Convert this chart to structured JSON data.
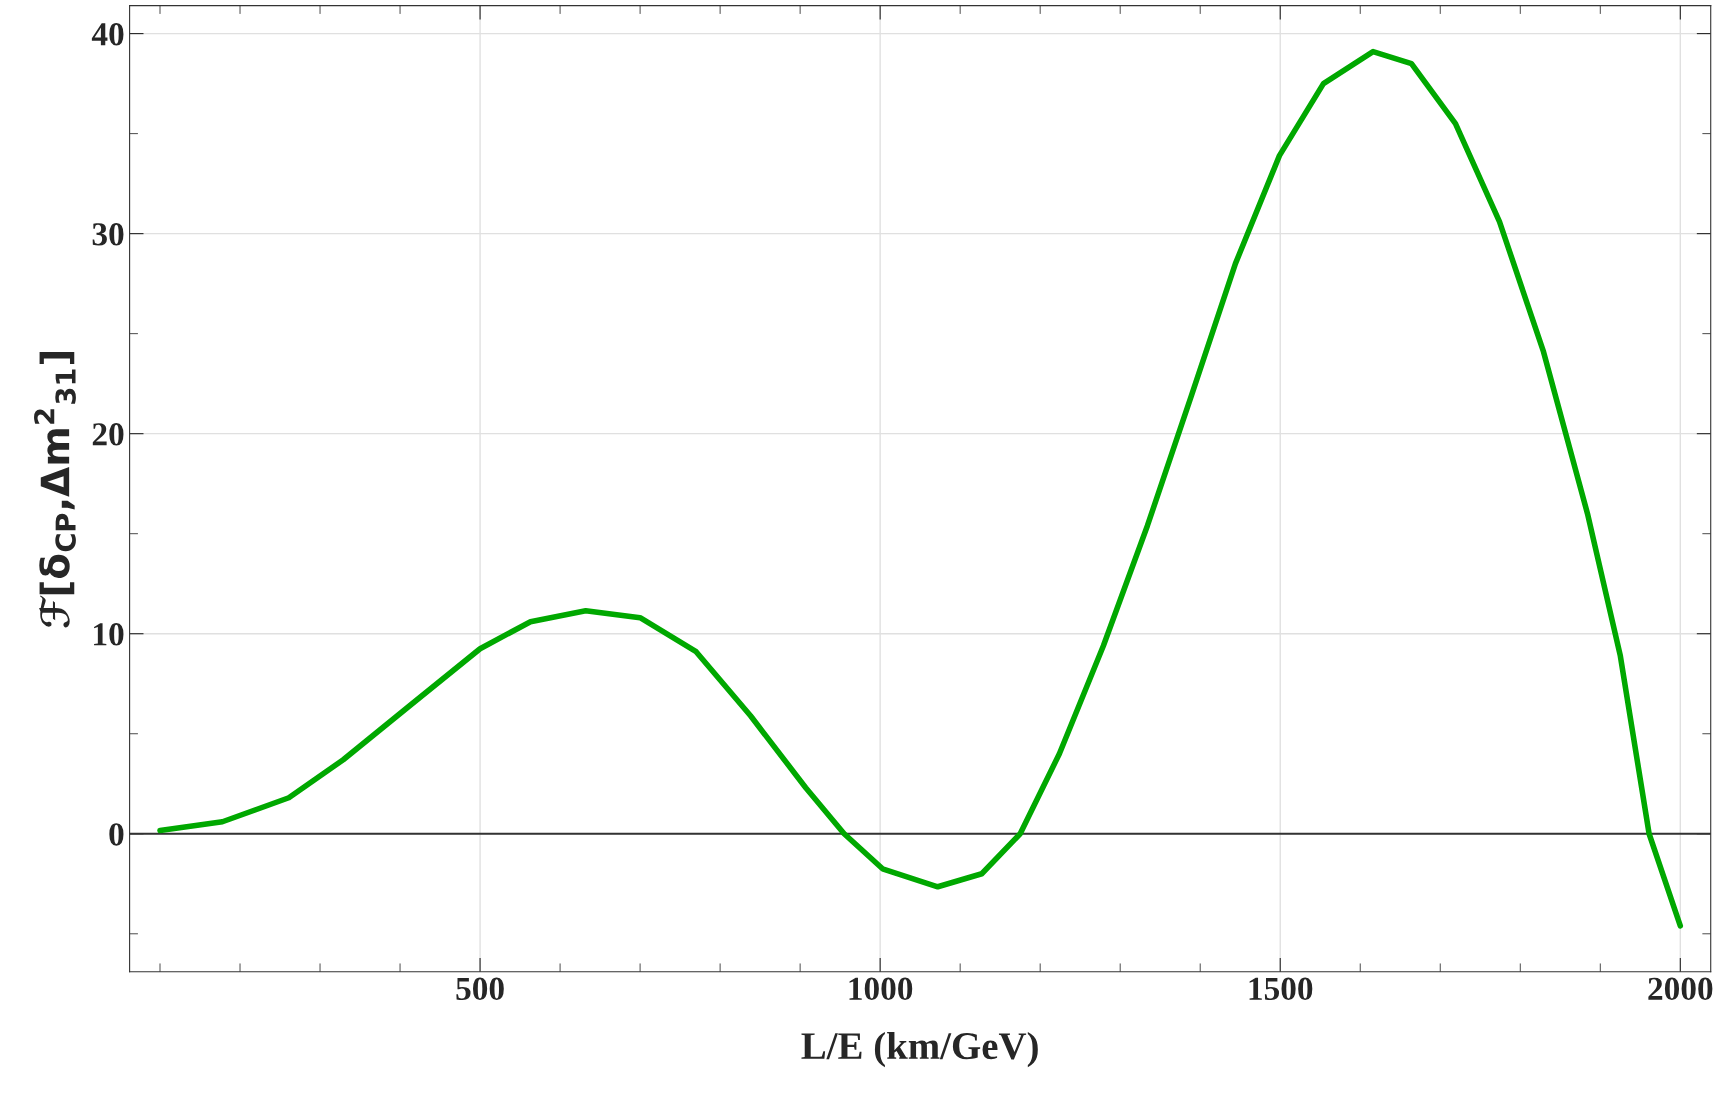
{
  "chart_data": {
    "type": "line",
    "xlabel": "L/E (km/GeV)",
    "ylabel": "ℱ[δ$_{CP}$,Δm$^{2}$$_{31}$]",
    "x": [
      100,
      178,
      261,
      329,
      412,
      500,
      563,
      632,
      700,
      770,
      838,
      907,
      955,
      1003,
      1072,
      1127,
      1175,
      1224,
      1279,
      1334,
      1389,
      1444,
      1499,
      1554,
      1616,
      1664,
      1719,
      1774,
      1829,
      1884,
      1925,
      1961,
      2000
    ],
    "series": [
      {
        "color": "#00a800",
        "values": [
          0.16,
          0.6,
          1.8,
          3.7,
          6.4,
          9.25,
          10.6,
          11.15,
          10.8,
          9.1,
          5.9,
          2.3,
          0,
          -1.75,
          -2.65,
          -2.0,
          0,
          4.0,
          9.4,
          15.4,
          21.9,
          28.5,
          33.9,
          37.5,
          39.1,
          38.5,
          35.5,
          30.6,
          24.1,
          16.0,
          8.9,
          0,
          -4.6
        ]
      }
    ],
    "xlim": [
      62,
      2038
    ],
    "ylim": [
      -6.9,
      41.4
    ],
    "xticks": [
      {
        "value": 100,
        "label": null
      },
      {
        "value": 200,
        "label": null
      },
      {
        "value": 300,
        "label": null
      },
      {
        "value": 400,
        "label": null
      },
      500,
      {
        "value": 600,
        "label": null
      },
      {
        "value": 700,
        "label": null
      },
      {
        "value": 800,
        "label": null
      },
      {
        "value": 900,
        "label": null
      },
      1000,
      {
        "value": 1100,
        "label": null
      },
      {
        "value": 1200,
        "label": null
      },
      {
        "value": 1300,
        "label": null
      },
      {
        "value": 1400,
        "label": null
      },
      1500,
      {
        "value": 1600,
        "label": null
      },
      {
        "value": 1700,
        "label": null
      },
      {
        "value": 1800,
        "label": null
      },
      {
        "value": 1900,
        "label": null
      },
      2000
    ],
    "yticks": [
      {
        "value": -5,
        "label": null
      },
      0,
      {
        "value": 5,
        "label": null
      },
      10,
      {
        "value": 15,
        "label": null
      },
      20,
      {
        "value": 25,
        "label": null
      },
      30,
      {
        "value": 35,
        "label": null
      },
      40
    ],
    "grid": true,
    "marker": "none",
    "line_style": "solid",
    "ref_lines": [
      {
        "axis": "y",
        "value": 0,
        "color": "#333333"
      }
    ]
  }
}
